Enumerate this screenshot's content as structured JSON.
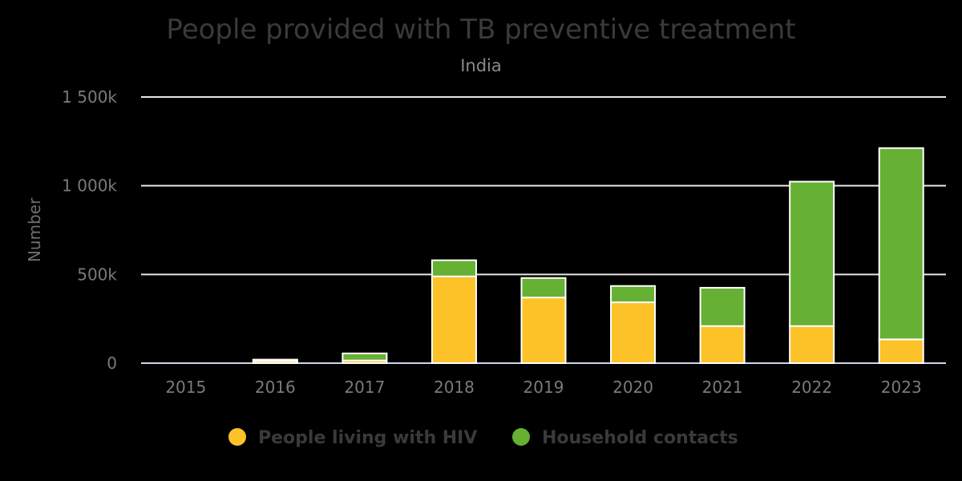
{
  "chart_data": {
    "type": "bar",
    "stacked": true,
    "title": "People provided with TB preventive treatment",
    "subtitle": "India",
    "xlabel": "",
    "ylabel": "Number",
    "categories": [
      "2015",
      "2016",
      "2017",
      "2018",
      "2019",
      "2020",
      "2021",
      "2022",
      "2023"
    ],
    "series": [
      {
        "name": "People living with HIV",
        "color": "#fcc228",
        "values": [
          0,
          12000,
          15000,
          489000,
          370000,
          343000,
          209000,
          209000,
          134000
        ]
      },
      {
        "name": "Household contacts",
        "color": "#66b034",
        "values": [
          0,
          8000,
          40000,
          91000,
          110000,
          92000,
          216000,
          814000,
          1078000
        ]
      }
    ],
    "ylim": [
      0,
      1500000
    ],
    "yticks": [
      0,
      500000,
      1000000,
      1500000
    ],
    "ytick_labels": [
      "0",
      "500k",
      "1 000k",
      "1 500k"
    ],
    "grid": true,
    "legend_position": "bottom-center",
    "bar_border_color": "#ffffff",
    "background": "#000000"
  }
}
